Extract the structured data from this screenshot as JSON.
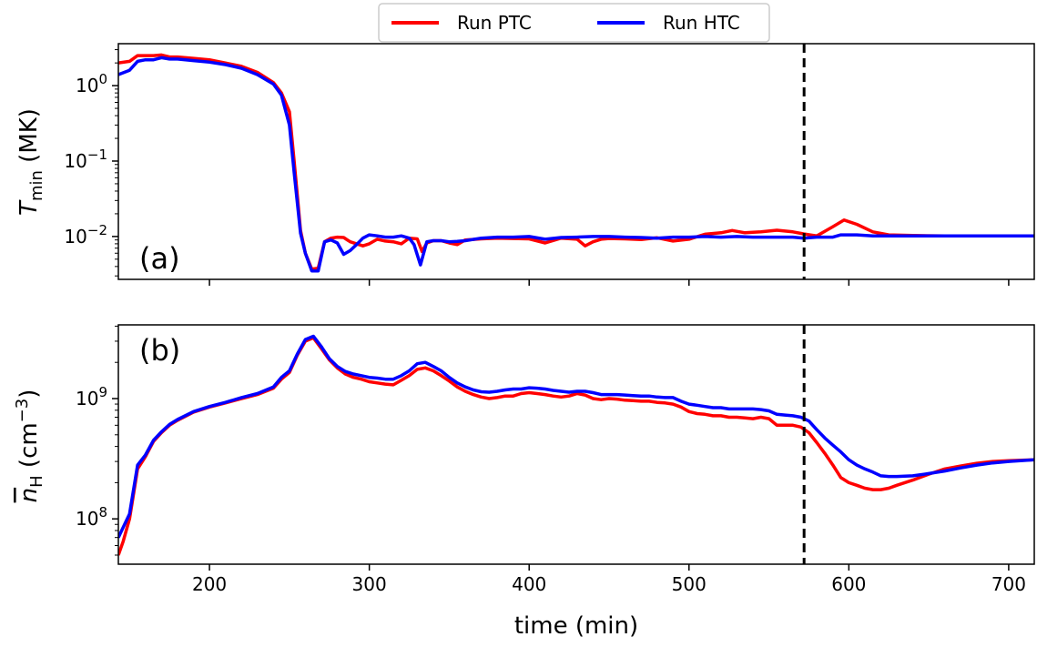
{
  "chart_data": {
    "type": "line",
    "shared_x": {
      "xlabel": "time (min)",
      "xlim": [
        143,
        716
      ],
      "ticks": [
        200,
        300,
        400,
        500,
        600,
        700
      ]
    },
    "legend": {
      "placement": "top-center",
      "entries": [
        {
          "name": "Run PTC",
          "color": "#ff0000"
        },
        {
          "name": "Run HTC",
          "color": "#0000ff"
        }
      ]
    },
    "vline": {
      "x": 572,
      "style": "dashed",
      "color": "#000000"
    },
    "panels": [
      {
        "label": "(a)",
        "ylabel_main": "T",
        "ylabel_sub": "min",
        "ylabel_unit": " (MK)",
        "yscale": "log",
        "ylim": [
          0.0027,
          3.6
        ],
        "yticks": [
          {
            "value": 1,
            "base": "10",
            "exp": "0"
          },
          {
            "value": 0.1,
            "base": "10",
            "exp": "−1"
          },
          {
            "value": 0.01,
            "base": "10",
            "exp": "−2"
          }
        ],
        "series": [
          {
            "name": "Run PTC",
            "color": "#ff0000",
            "x": [
              143,
              150,
              155,
              160,
              165,
              170,
              175,
              180,
              190,
              200,
              210,
              220,
              230,
              240,
              245,
              250,
              253,
              257,
              260,
              264,
              268,
              272,
              276,
              280,
              284,
              288,
              292,
              296,
              300,
              305,
              310,
              315,
              320,
              325,
              330,
              333,
              336,
              340,
              345,
              350,
              355,
              360,
              370,
              380,
              390,
              400,
              410,
              420,
              430,
              435,
              440,
              445,
              450,
              460,
              470,
              480,
              490,
              500,
              510,
              520,
              527,
              535,
              545,
              555,
              565,
              572,
              580,
              590,
              597,
              605,
              615,
              625,
              640,
              660,
              680,
              700,
              716
            ],
            "y": [
              2.0,
              2.1,
              2.5,
              2.5,
              2.5,
              2.55,
              2.4,
              2.4,
              2.3,
              2.2,
              2.0,
              1.8,
              1.5,
              1.1,
              0.8,
              0.45,
              0.1,
              0.012,
              0.006,
              0.0037,
              0.0038,
              0.0085,
              0.0095,
              0.0098,
              0.0097,
              0.0085,
              0.008,
              0.0075,
              0.008,
              0.0092,
              0.0087,
              0.0085,
              0.008,
              0.0095,
              0.0093,
              0.0063,
              0.0082,
              0.0088,
              0.0088,
              0.0082,
              0.0078,
              0.009,
              0.0093,
              0.0095,
              0.0094,
              0.0093,
              0.0082,
              0.0095,
              0.0092,
              0.0075,
              0.0085,
              0.0092,
              0.0094,
              0.0093,
              0.0091,
              0.0096,
              0.0087,
              0.0092,
              0.0107,
              0.0112,
              0.012,
              0.0112,
              0.0115,
              0.0121,
              0.0115,
              0.0108,
              0.0102,
              0.0135,
              0.0165,
              0.0145,
              0.0115,
              0.0105,
              0.0103,
              0.0102,
              0.0102,
              0.0102,
              0.0102
            ]
          },
          {
            "name": "Run HTC",
            "color": "#0000ff",
            "x": [
              143,
              150,
              155,
              160,
              165,
              170,
              175,
              180,
              190,
              200,
              210,
              220,
              230,
              240,
              245,
              250,
              253,
              257,
              260,
              264,
              268,
              272,
              276,
              280,
              284,
              288,
              292,
              296,
              300,
              305,
              310,
              315,
              320,
              325,
              328,
              332,
              336,
              340,
              345,
              350,
              355,
              360,
              370,
              380,
              390,
              400,
              410,
              420,
              430,
              440,
              450,
              460,
              470,
              480,
              490,
              500,
              510,
              520,
              530,
              540,
              550,
              560,
              565,
              572,
              580,
              590,
              595,
              605,
              615,
              625,
              640,
              660,
              680,
              700,
              716
            ],
            "y": [
              1.4,
              1.6,
              2.1,
              2.2,
              2.2,
              2.35,
              2.25,
              2.25,
              2.15,
              2.05,
              1.9,
              1.7,
              1.4,
              1.05,
              0.75,
              0.3,
              0.07,
              0.011,
              0.006,
              0.0035,
              0.0035,
              0.0085,
              0.009,
              0.0082,
              0.0058,
              0.0065,
              0.0078,
              0.0095,
              0.0105,
              0.0102,
              0.0098,
              0.0098,
              0.0102,
              0.0095,
              0.0078,
              0.0042,
              0.0085,
              0.0088,
              0.0088,
              0.0085,
              0.0086,
              0.0088,
              0.0095,
              0.0098,
              0.0098,
              0.01,
              0.0092,
              0.0097,
              0.0098,
              0.01,
              0.01,
              0.0098,
              0.0097,
              0.0095,
              0.0098,
              0.0098,
              0.01,
              0.0098,
              0.01,
              0.0098,
              0.0098,
              0.0098,
              0.0098,
              0.0095,
              0.0098,
              0.0098,
              0.0105,
              0.0105,
              0.0102,
              0.0102,
              0.0102,
              0.0102,
              0.0102,
              0.0102,
              0.0102
            ]
          }
        ]
      },
      {
        "label": "(b)",
        "ylabel_main": "n",
        "ylabel_sub": "H",
        "ylabel_unit": " (cm",
        "ylabel_sup": "−3",
        "ylabel_close": ")",
        "overline": true,
        "yscale": "log",
        "ylim": [
          42000000.0,
          4100000000.0
        ],
        "yticks": [
          {
            "value": 1000000000.0,
            "base": "10",
            "exp": "9"
          },
          {
            "value": 100000000.0,
            "base": "10",
            "exp": "8"
          }
        ],
        "series": [
          {
            "name": "Run PTC",
            "color": "#ff0000",
            "x": [
              143,
              146,
              150,
              155,
              160,
              165,
              170,
              175,
              180,
              190,
              200,
              210,
              220,
              230,
              240,
              245,
              250,
              255,
              260,
              265,
              270,
              275,
              280,
              285,
              290,
              295,
              300,
              305,
              310,
              315,
              320,
              325,
              330,
              335,
              340,
              345,
              350,
              355,
              360,
              365,
              370,
              375,
              380,
              385,
              390,
              395,
              400,
              405,
              410,
              415,
              420,
              425,
              430,
              435,
              440,
              445,
              450,
              455,
              460,
              465,
              470,
              475,
              480,
              485,
              490,
              495,
              500,
              505,
              510,
              515,
              520,
              525,
              530,
              535,
              540,
              545,
              550,
              555,
              560,
              565,
              570,
              575,
              580,
              585,
              590,
              595,
              600,
              605,
              610,
              615,
              620,
              625,
              630,
              640,
              650,
              660,
              670,
              680,
              690,
              700,
              716
            ],
            "y": [
              50000000.0,
              65000000.0,
              100000000.0,
              260000000.0,
              330000000.0,
              440000000.0,
              520000000.0,
              600000000.0,
              660000000.0,
              770000000.0,
              850000000.0,
              920000000.0,
              1000000000.0,
              1080000000.0,
              1220000000.0,
              1450000000.0,
              1650000000.0,
              2300000000.0,
              3000000000.0,
              3200000000.0,
              2600000000.0,
              2100000000.0,
              1800000000.0,
              1600000000.0,
              1500000000.0,
              1450000000.0,
              1380000000.0,
              1350000000.0,
              1320000000.0,
              1300000000.0,
              1420000000.0,
              1550000000.0,
              1750000000.0,
              1800000000.0,
              1700000000.0,
              1550000000.0,
              1400000000.0,
              1250000000.0,
              1150000000.0,
              1080000000.0,
              1030000000.0,
              1000000000.0,
              1020000000.0,
              1050000000.0,
              1050000000.0,
              1100000000.0,
              1120000000.0,
              1100000000.0,
              1080000000.0,
              1050000000.0,
              1030000000.0,
              1050000000.0,
              1100000000.0,
              1070000000.0,
              1000000000.0,
              980000000.0,
              1000000000.0,
              990000000.0,
              970000000.0,
              960000000.0,
              950000000.0,
              950000000.0,
              930000000.0,
              920000000.0,
              900000000.0,
              850000000.0,
              780000000.0,
              750000000.0,
              740000000.0,
              720000000.0,
              720000000.0,
              700000000.0,
              700000000.0,
              690000000.0,
              680000000.0,
              700000000.0,
              680000000.0,
              600000000.0,
              600000000.0,
              600000000.0,
              580000000.0,
              520000000.0,
              430000000.0,
              350000000.0,
              280000000.0,
              220000000.0,
              200000000.0,
              190000000.0,
              180000000.0,
              175000000.0,
              175000000.0,
              180000000.0,
              190000000.0,
              210000000.0,
              235000000.0,
              260000000.0,
              275000000.0,
              290000000.0,
              300000000.0,
              305000000.0,
              310000000.0
            ]
          },
          {
            "name": "Run HTC",
            "color": "#0000ff",
            "x": [
              143,
              146,
              150,
              155,
              160,
              165,
              170,
              175,
              180,
              190,
              200,
              210,
              220,
              230,
              240,
              245,
              250,
              255,
              260,
              265,
              270,
              275,
              280,
              285,
              290,
              295,
              300,
              305,
              310,
              315,
              320,
              325,
              330,
              335,
              340,
              345,
              350,
              355,
              360,
              365,
              370,
              375,
              380,
              385,
              390,
              395,
              400,
              405,
              410,
              415,
              420,
              425,
              430,
              435,
              440,
              445,
              450,
              455,
              460,
              465,
              470,
              475,
              480,
              485,
              490,
              495,
              500,
              505,
              510,
              515,
              520,
              525,
              530,
              535,
              540,
              545,
              550,
              555,
              560,
              565,
              570,
              575,
              580,
              585,
              590,
              595,
              600,
              605,
              610,
              615,
              620,
              625,
              630,
              640,
              650,
              660,
              670,
              680,
              690,
              700,
              716
            ],
            "y": [
              70000000.0,
              85000000.0,
              110000000.0,
              280000000.0,
              340000000.0,
              450000000.0,
              530000000.0,
              610000000.0,
              670000000.0,
              780000000.0,
              860000000.0,
              930000000.0,
              1020000000.0,
              1100000000.0,
              1250000000.0,
              1500000000.0,
              1700000000.0,
              2350000000.0,
              3100000000.0,
              3300000000.0,
              2700000000.0,
              2150000000.0,
              1850000000.0,
              1680000000.0,
              1600000000.0,
              1550000000.0,
              1500000000.0,
              1480000000.0,
              1450000000.0,
              1450000000.0,
              1550000000.0,
              1700000000.0,
              1950000000.0,
              2000000000.0,
              1850000000.0,
              1700000000.0,
              1500000000.0,
              1350000000.0,
              1250000000.0,
              1180000000.0,
              1140000000.0,
              1130000000.0,
              1150000000.0,
              1180000000.0,
              1200000000.0,
              1200000000.0,
              1230000000.0,
              1220000000.0,
              1200000000.0,
              1170000000.0,
              1150000000.0,
              1130000000.0,
              1150000000.0,
              1150000000.0,
              1120000000.0,
              1080000000.0,
              1080000000.0,
              1080000000.0,
              1070000000.0,
              1060000000.0,
              1050000000.0,
              1050000000.0,
              1030000000.0,
              1020000000.0,
              1020000000.0,
              950000000.0,
              900000000.0,
              880000000.0,
              860000000.0,
              840000000.0,
              840000000.0,
              820000000.0,
              820000000.0,
              820000000.0,
              820000000.0,
              810000000.0,
              790000000.0,
              740000000.0,
              730000000.0,
              720000000.0,
              700000000.0,
              650000000.0,
              550000000.0,
              470000000.0,
              410000000.0,
              360000000.0,
              310000000.0,
              280000000.0,
              260000000.0,
              245000000.0,
              228000000.0,
              225000000.0,
              225000000.0,
              228000000.0,
              238000000.0,
              250000000.0,
              265000000.0,
              280000000.0,
              292000000.0,
              300000000.0,
              310000000.0
            ]
          }
        ]
      }
    ]
  }
}
